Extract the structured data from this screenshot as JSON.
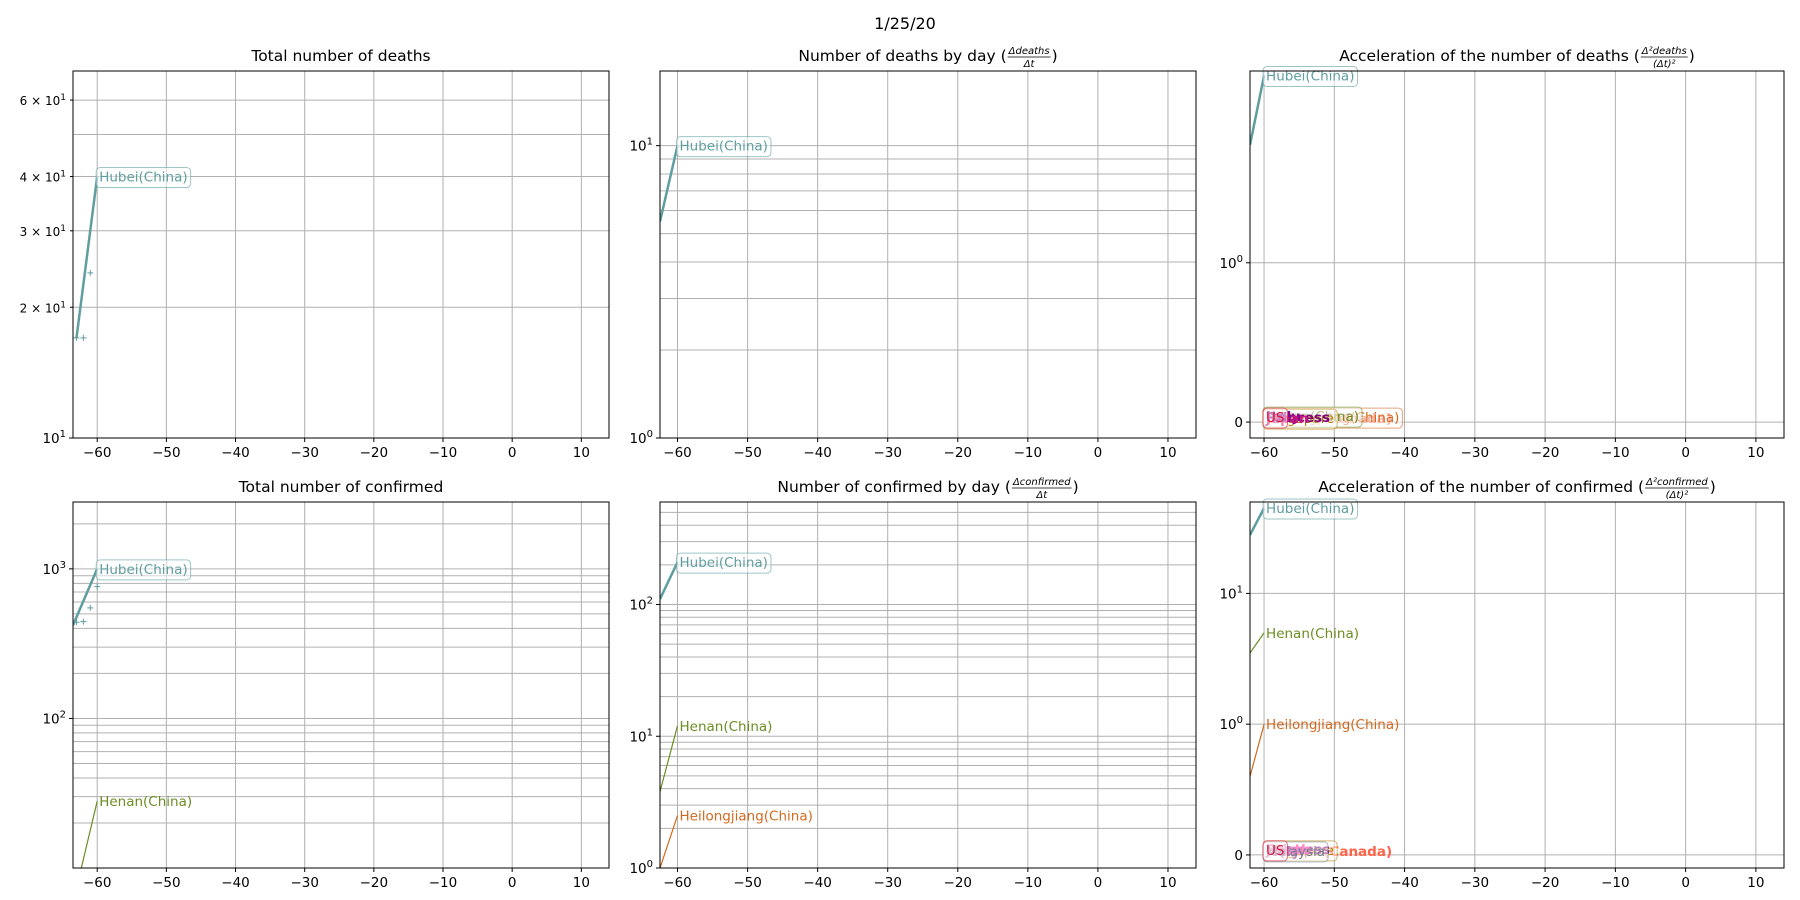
{
  "suptitle": "1/25/20",
  "chart_data": [
    {
      "type": "line",
      "title": "Total number of deaths",
      "yscale": "log",
      "xlim": [
        -63.5,
        14
      ],
      "ylim": [
        10,
        70
      ],
      "x_ticks": [
        -60,
        -50,
        -40,
        -30,
        -20,
        -10,
        0,
        10
      ],
      "y_major_ticks": [
        {
          "v": 10,
          "base": "10",
          "exp": "1"
        }
      ],
      "y_minor_labeled": [
        {
          "v": 20,
          "label": "2 × 10",
          "exp": "1"
        },
        {
          "v": 30,
          "label": "3 × 10",
          "exp": "1"
        },
        {
          "v": 40,
          "label": "4 × 10",
          "exp": "1"
        },
        {
          "v": 60,
          "label": "6 × 10",
          "exp": "1"
        }
      ],
      "y_grid": [
        10,
        20,
        30,
        40,
        50,
        60
      ],
      "series": [
        {
          "name": "Hubei(China)",
          "color": "#5f9ea0",
          "width": 2.5,
          "boxed": true,
          "x": [
            -63,
            -60
          ],
          "y": [
            17,
            40
          ],
          "markers": [
            {
              "x": -63,
              "y": 17
            },
            {
              "x": -62,
              "y": 17
            },
            {
              "x": -61,
              "y": 24
            }
          ]
        }
      ]
    },
    {
      "type": "line",
      "title": "Number of deaths by day",
      "title_frac_num": "Δdeaths",
      "title_frac_den": "Δt",
      "yscale": "log",
      "xlim": [
        -62.5,
        14
      ],
      "ylim": [
        1,
        18
      ],
      "x_ticks": [
        -60,
        -50,
        -40,
        -30,
        -20,
        -10,
        0,
        10
      ],
      "y_major_ticks": [
        {
          "v": 1,
          "base": "10",
          "exp": "0"
        },
        {
          "v": 10,
          "base": "10",
          "exp": "1"
        }
      ],
      "y_minor_labeled": [],
      "y_grid": [
        1,
        2,
        3,
        4,
        5,
        6,
        7,
        8,
        9,
        10
      ],
      "series": [
        {
          "name": "Hubei(China)",
          "color": "#5f9ea0",
          "width": 2.5,
          "boxed": true,
          "x": [
            -62.5,
            -60
          ],
          "y": [
            5.5,
            10
          ],
          "markers": []
        }
      ]
    },
    {
      "type": "line",
      "title": "Acceleration of the number of deaths",
      "title_frac_num": "Δ²deaths",
      "title_frac_den": "(Δt)²",
      "yscale": "symlog",
      "xlim": [
        -62,
        14
      ],
      "ylim": [
        -0.1,
        16
      ],
      "x_ticks": [
        -60,
        -50,
        -40,
        -30,
        -20,
        -10,
        0,
        10
      ],
      "y_major_ticks": [
        {
          "v": 0,
          "base": "0",
          "exp": ""
        },
        {
          "v": 1,
          "base": "10",
          "exp": "0"
        }
      ],
      "y_minor_labeled": [],
      "y_grid": [
        0,
        1
      ],
      "series": [
        {
          "name": "Hubei(China)",
          "color": "#5f9ea0",
          "width": 2.5,
          "boxed": true,
          "x": [
            -62,
            -60
          ],
          "y": [
            5.5,
            15
          ],
          "markers": []
        }
      ],
      "zero_labels": [
        {
          "name": "Ontario(Canada)",
          "color": "#ff6347",
          "boxed": false
        },
        {
          "name": "Heilongjiang(China)",
          "color": "#d2691e",
          "boxed": true
        },
        {
          "name": "Henan(China)",
          "color": "#6b8e23",
          "boxed": true
        },
        {
          "name": "Singapore",
          "color": "#b8860b",
          "boxed": true
        },
        {
          "name": "Princess",
          "color": "#800080",
          "boxed": false
        },
        {
          "name": "Italy",
          "color": "#8b008b",
          "boxed": false
        },
        {
          "name": "Japan",
          "color": "#c71585",
          "boxed": false
        },
        {
          "name": "US",
          "color": "#dc143c",
          "boxed": true
        }
      ]
    },
    {
      "type": "line",
      "title": "Total number of confirmed",
      "yscale": "log",
      "xlim": [
        -63.5,
        14
      ],
      "ylim": [
        10,
        2800
      ],
      "x_ticks": [
        -60,
        -50,
        -40,
        -30,
        -20,
        -10,
        0,
        10
      ],
      "y_major_ticks": [
        {
          "v": 100,
          "base": "10",
          "exp": "2"
        },
        {
          "v": 1000,
          "base": "10",
          "exp": "3"
        }
      ],
      "y_minor_labeled": [],
      "y_grid": [
        10,
        20,
        30,
        40,
        50,
        60,
        70,
        80,
        90,
        100,
        200,
        300,
        400,
        500,
        600,
        700,
        800,
        900,
        1000,
        2000
      ],
      "series": [
        {
          "name": "Hubei(China)",
          "color": "#5f9ea0",
          "width": 2.5,
          "boxed": true,
          "x": [
            -63.5,
            -60
          ],
          "y": [
            420,
            1000
          ],
          "markers": [
            {
              "x": -63,
              "y": 440
            },
            {
              "x": -62,
              "y": 444
            },
            {
              "x": -61,
              "y": 549
            },
            {
              "x": -60,
              "y": 761
            }
          ]
        },
        {
          "name": "Henan(China)",
          "color": "#6b8e23",
          "width": 1.2,
          "boxed": false,
          "x": [
            -62.3,
            -60
          ],
          "y": [
            10,
            28
          ],
          "markers": []
        }
      ]
    },
    {
      "type": "line",
      "title": "Number of confirmed by day",
      "title_frac_num": "Δconfirmed",
      "title_frac_den": "Δt",
      "yscale": "log",
      "xlim": [
        -62.5,
        14
      ],
      "ylim": [
        1,
        600
      ],
      "x_ticks": [
        -60,
        -50,
        -40,
        -30,
        -20,
        -10,
        0,
        10
      ],
      "y_major_ticks": [
        {
          "v": 1,
          "base": "10",
          "exp": "0"
        },
        {
          "v": 10,
          "base": "10",
          "exp": "1"
        },
        {
          "v": 100,
          "base": "10",
          "exp": "2"
        }
      ],
      "y_minor_labeled": [],
      "y_grid": [
        1,
        2,
        3,
        4,
        5,
        6,
        7,
        8,
        9,
        10,
        20,
        30,
        40,
        50,
        60,
        70,
        80,
        90,
        100,
        200,
        300,
        400,
        500
      ],
      "series": [
        {
          "name": "Hubei(China)",
          "color": "#5f9ea0",
          "width": 2.5,
          "boxed": true,
          "x": [
            -62.5,
            -60
          ],
          "y": [
            110,
            210
          ],
          "markers": []
        },
        {
          "name": "Henan(China)",
          "color": "#6b8e23",
          "width": 1.2,
          "boxed": false,
          "x": [
            -62.5,
            -60
          ],
          "y": [
            3.8,
            12
          ],
          "markers": []
        },
        {
          "name": "Heilongjiang(China)",
          "color": "#d2691e",
          "width": 1.2,
          "boxed": false,
          "x": [
            -62.5,
            -60
          ],
          "y": [
            1,
            2.5
          ],
          "markers": []
        }
      ]
    },
    {
      "type": "line",
      "title": "Acceleration of the number of confirmed",
      "title_frac_num": "Δ²confirmed",
      "title_frac_den": "(Δt)²",
      "yscale": "symlog",
      "xlim": [
        -62,
        14
      ],
      "ylim": [
        -0.1,
        50
      ],
      "x_ticks": [
        -60,
        -50,
        -40,
        -30,
        -20,
        -10,
        0,
        10
      ],
      "y_major_ticks": [
        {
          "v": 0,
          "base": "0",
          "exp": ""
        },
        {
          "v": 1,
          "base": "10",
          "exp": "0"
        },
        {
          "v": 10,
          "base": "10",
          "exp": "1"
        }
      ],
      "y_minor_labeled": [],
      "y_grid": [
        0,
        1,
        10
      ],
      "series": [
        {
          "name": "Hubei(China)",
          "color": "#5f9ea0",
          "width": 2.5,
          "boxed": true,
          "x": [
            -62,
            -60
          ],
          "y": [
            28,
            45
          ],
          "markers": []
        },
        {
          "name": "Henan(China)",
          "color": "#6b8e23",
          "width": 1.2,
          "boxed": false,
          "x": [
            -62,
            -60
          ],
          "y": [
            3.5,
            5
          ],
          "markers": []
        },
        {
          "name": "Heilongjiang(China)",
          "color": "#d2691e",
          "width": 1.2,
          "boxed": false,
          "x": [
            -62,
            -60
          ],
          "y": [
            0.6,
            1
          ],
          "markers": []
        }
      ],
      "zero_labels": [
        {
          "name": "Ontario(Canada)",
          "color": "#ff6347",
          "boxed": false
        },
        {
          "name": "Singapore",
          "color": "#b8860b",
          "boxed": true
        },
        {
          "name": "Princess",
          "color": "#800080",
          "boxed": false
        },
        {
          "name": "Italy",
          "color": "#8b008b",
          "boxed": false
        },
        {
          "name": "Japan",
          "color": "#c71585",
          "boxed": false
        },
        {
          "name": "South",
          "color": "#ff1493",
          "boxed": false
        },
        {
          "name": "Malaysia",
          "color": "#708090",
          "boxed": true
        },
        {
          "name": "US",
          "color": "#dc143c",
          "boxed": true
        }
      ]
    }
  ]
}
